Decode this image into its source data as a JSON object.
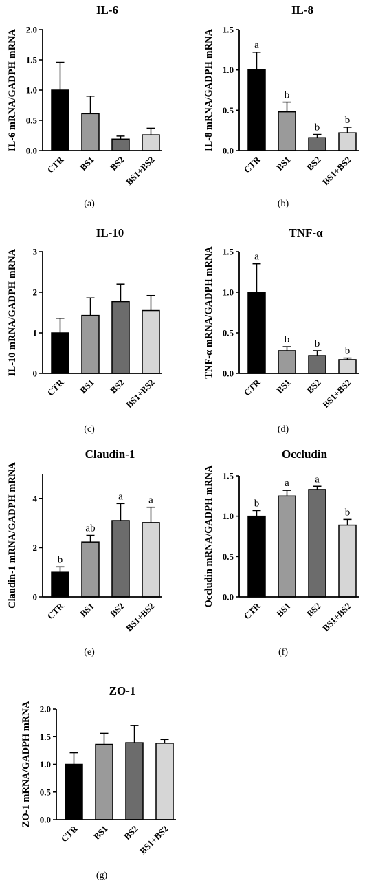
{
  "chart_data": [
    {
      "type": "bar",
      "title": "IL-6",
      "ylabel": "IL-6 mRNA/GADPH mRNA",
      "caption": "(a)",
      "categories": [
        "CTR",
        "BS1",
        "BS2",
        "BS1+BS2"
      ],
      "values": [
        1.0,
        0.61,
        0.19,
        0.26
      ],
      "errors": [
        0.46,
        0.29,
        0.05,
        0.11
      ],
      "letters": [],
      "ylim": [
        0,
        2.0
      ],
      "yticks": [
        "0.0",
        "0.5",
        "1.0",
        "1.5",
        "2.0"
      ]
    },
    {
      "type": "bar",
      "title": "IL-8",
      "ylabel": "IL-8 mRNA/GADPH mRNA",
      "caption": "(b)",
      "categories": [
        "CTR",
        "BS1",
        "BS2",
        "BS1+BS2"
      ],
      "values": [
        1.0,
        0.48,
        0.16,
        0.22
      ],
      "errors": [
        0.22,
        0.12,
        0.04,
        0.07
      ],
      "letters": [
        "a",
        "b",
        "b",
        "b"
      ],
      "ylim": [
        0,
        1.5
      ],
      "yticks": [
        "0.0",
        "0.5",
        "1.0",
        "1.5"
      ]
    },
    {
      "type": "bar",
      "title": "IL-10",
      "ylabel": "IL-10 mRNA/GADPH mRNA",
      "caption": "(c)",
      "categories": [
        "CTR",
        "BS1",
        "BS2",
        "BS1+BS2"
      ],
      "values": [
        1.0,
        1.43,
        1.77,
        1.55
      ],
      "errors": [
        0.36,
        0.43,
        0.43,
        0.37
      ],
      "letters": [],
      "ylim": [
        0,
        3
      ],
      "yticks": [
        "0",
        "1",
        "2",
        "3"
      ]
    },
    {
      "type": "bar",
      "title": "TNF-α",
      "ylabel": "TNF-α mRNA/GADPH mRNA",
      "caption": "(d)",
      "categories": [
        "CTR",
        "BS1",
        "BS2",
        "BS1+BS2"
      ],
      "values": [
        1.0,
        0.28,
        0.22,
        0.17
      ],
      "errors": [
        0.35,
        0.05,
        0.06,
        0.02
      ],
      "letters": [
        "a",
        "b",
        "b",
        "b"
      ],
      "ylim": [
        0,
        1.5
      ],
      "yticks": [
        "0.0",
        "0.5",
        "1.0",
        "1.5"
      ]
    },
    {
      "type": "bar",
      "title": "Claudin-1",
      "ylabel": "Claudin-1 mRNA/GADPH mRNA",
      "caption": "(e)",
      "categories": [
        "CTR",
        "BS1",
        "BS2",
        "BS1+BS2"
      ],
      "values": [
        1.0,
        2.23,
        3.1,
        3.02
      ],
      "errors": [
        0.22,
        0.27,
        0.69,
        0.62
      ],
      "letters": [
        "b",
        "ab",
        "a",
        "a"
      ],
      "ylim": [
        0,
        5
      ],
      "yticks": [
        "0",
        "2",
        "4"
      ]
    },
    {
      "type": "bar",
      "title": "Occludin",
      "ylabel": "Occludin mRNA/GADPH mRNA",
      "caption": "(f)",
      "categories": [
        "CTR",
        "BS1",
        "BS2",
        "BS1+BS2"
      ],
      "values": [
        1.0,
        1.25,
        1.33,
        0.89
      ],
      "errors": [
        0.07,
        0.07,
        0.04,
        0.07
      ],
      "letters": [
        "b",
        "a",
        "a",
        "b"
      ],
      "ylim": [
        0,
        1.5
      ],
      "yticks": [
        "0.0",
        "0.5",
        "1.0",
        "1.5"
      ]
    },
    {
      "type": "bar",
      "title": "ZO-1",
      "ylabel": "ZO-1 mRNA/GADPH mRNA",
      "caption": "(g)",
      "categories": [
        "CTR",
        "BS1",
        "BS2",
        "BS1+BS2"
      ],
      "values": [
        1.0,
        1.36,
        1.39,
        1.38
      ],
      "errors": [
        0.21,
        0.2,
        0.31,
        0.07
      ],
      "letters": [],
      "ylim": [
        0,
        2.0
      ],
      "yticks": [
        "0.0",
        "0.5",
        "1.0",
        "1.5",
        "2.0"
      ]
    }
  ],
  "colors": {
    "bars": [
      "#000000",
      "#9a9a9a",
      "#6c6c6c",
      "#d6d6d6"
    ],
    "outline": "#000000"
  }
}
